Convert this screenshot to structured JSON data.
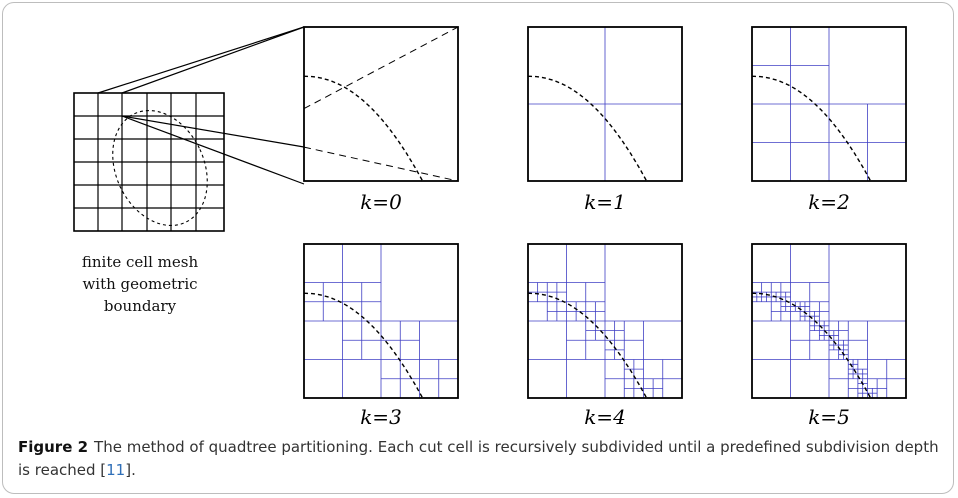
{
  "figure": {
    "mesh_caption": [
      "finite cell mesh",
      "with geometric",
      "boundary"
    ],
    "panels": [
      {
        "label": "k=0",
        "depth": 0
      },
      {
        "label": "k=1",
        "depth": 1
      },
      {
        "label": "k=2",
        "depth": 2
      },
      {
        "label": "k=3",
        "depth": 3
      },
      {
        "label": "k=4",
        "depth": 4
      },
      {
        "label": "k=5",
        "depth": 5
      }
    ],
    "colors": {
      "grid": "#3f3fc4",
      "boundary": "#000000",
      "frame": "#000000"
    }
  },
  "caption": {
    "label": "Figure 2",
    "text_before": "The method of quadtree partitioning. Each cut cell is recursively subdivided until a predefined subdivision depth is reached ",
    "ref_open": "[",
    "ref": "11",
    "ref_close": "]",
    "text_after": "."
  }
}
